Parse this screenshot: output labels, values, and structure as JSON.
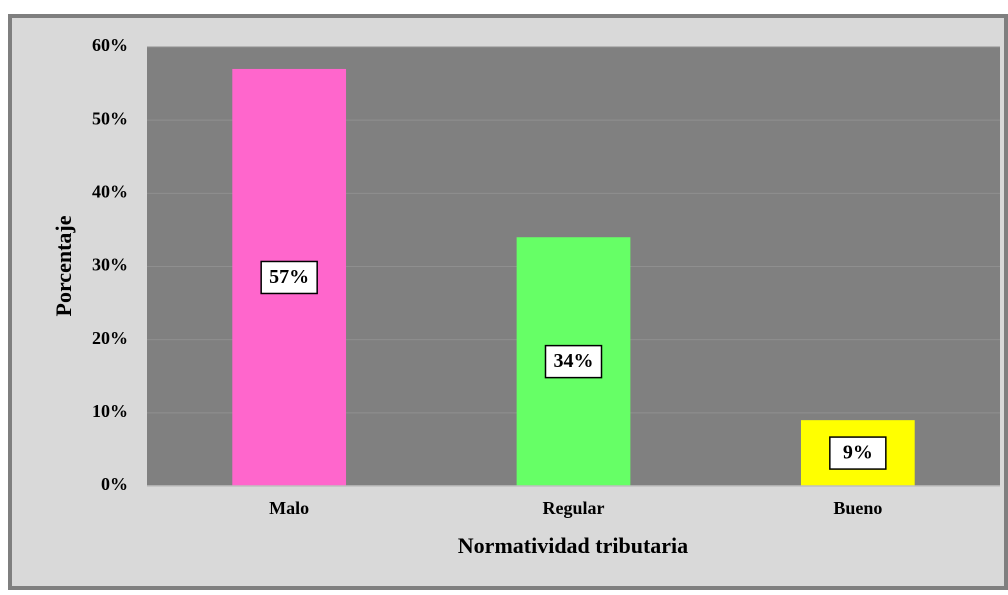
{
  "chart_data": {
    "type": "bar",
    "categories": [
      "Malo",
      "Regular",
      "Bueno"
    ],
    "values": [
      57,
      34,
      9
    ],
    "value_labels": [
      "57%",
      "34%",
      "9%"
    ],
    "colors": [
      "#ff66cc",
      "#66ff66",
      "#ffff00"
    ],
    "x_label": "Normatividad tributaria",
    "y_label": "Porcentaje",
    "ylim": [
      0,
      60
    ],
    "yticks": [
      {
        "value": 0,
        "label": "0%"
      },
      {
        "value": 10,
        "label": "10%"
      },
      {
        "value": 20,
        "label": "20%"
      },
      {
        "value": 30,
        "label": "30%"
      },
      {
        "value": 40,
        "label": "40%"
      },
      {
        "value": 50,
        "label": "50%"
      },
      {
        "value": 60,
        "label": "60%"
      }
    ],
    "grid": true
  }
}
